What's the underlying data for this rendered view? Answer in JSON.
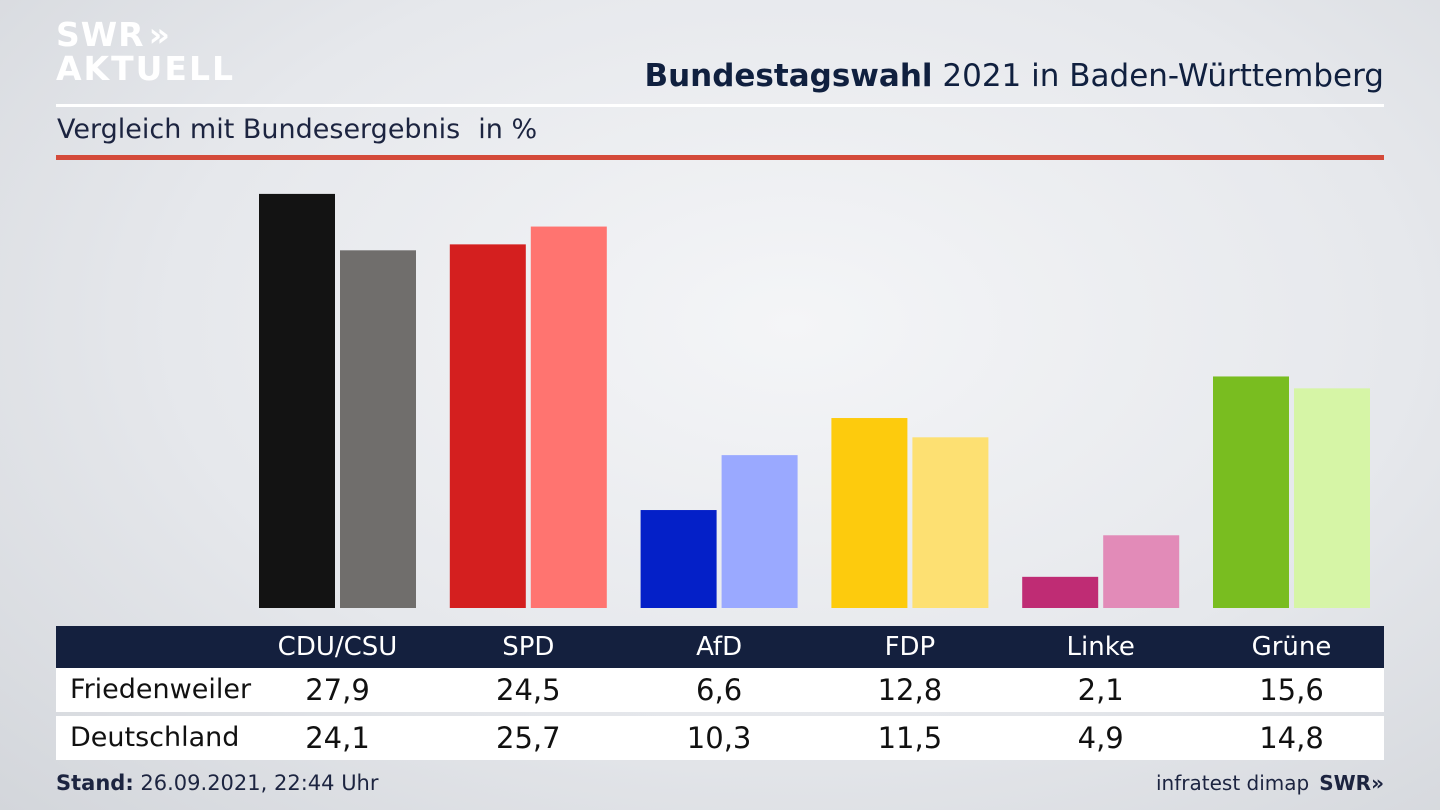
{
  "logo": {
    "line1": "SWR",
    "line1_arrows": "»",
    "line2": "AKTUELL"
  },
  "header": {
    "title_bold": "Bundestagswahl",
    "title_rest": "2021 in Baden-Württemberg",
    "subtitle": "Vergleich mit Bundesergebnis",
    "unit": "in %"
  },
  "chart_data": {
    "type": "bar",
    "categories": [
      "CDU/CSU",
      "SPD",
      "AfD",
      "FDP",
      "Linke",
      "Grüne"
    ],
    "series": [
      {
        "name": "Friedenweiler",
        "values": [
          27.9,
          24.5,
          6.6,
          12.8,
          2.1,
          15.6
        ]
      },
      {
        "name": "Deutschland",
        "values": [
          24.1,
          25.7,
          10.3,
          11.5,
          4.9,
          14.8
        ]
      }
    ],
    "colors": {
      "primary": [
        "#131313",
        "#d41f1f",
        "#0420c8",
        "#fdcb0d",
        "#bf2c74",
        "#79bd20"
      ],
      "secondary": [
        "#706e6c",
        "#ff7470",
        "#9aa9ff",
        "#fde072",
        "#e28bb8",
        "#d6f5a6"
      ]
    },
    "ylim": [
      0,
      28.5
    ]
  },
  "table": {
    "rows": [
      {
        "label": "Friedenweiler",
        "values": [
          "27,9",
          "24,5",
          "6,6",
          "12,8",
          "2,1",
          "15,6"
        ]
      },
      {
        "label": "Deutschland",
        "values": [
          "24,1",
          "25,7",
          "10,3",
          "11,5",
          "4,9",
          "14,8"
        ]
      }
    ]
  },
  "footer": {
    "stand_label": "Stand:",
    "stand_value": "26.09.2021, 22:44 Uhr",
    "source": "infratest dimap",
    "brand": "SWR»"
  }
}
